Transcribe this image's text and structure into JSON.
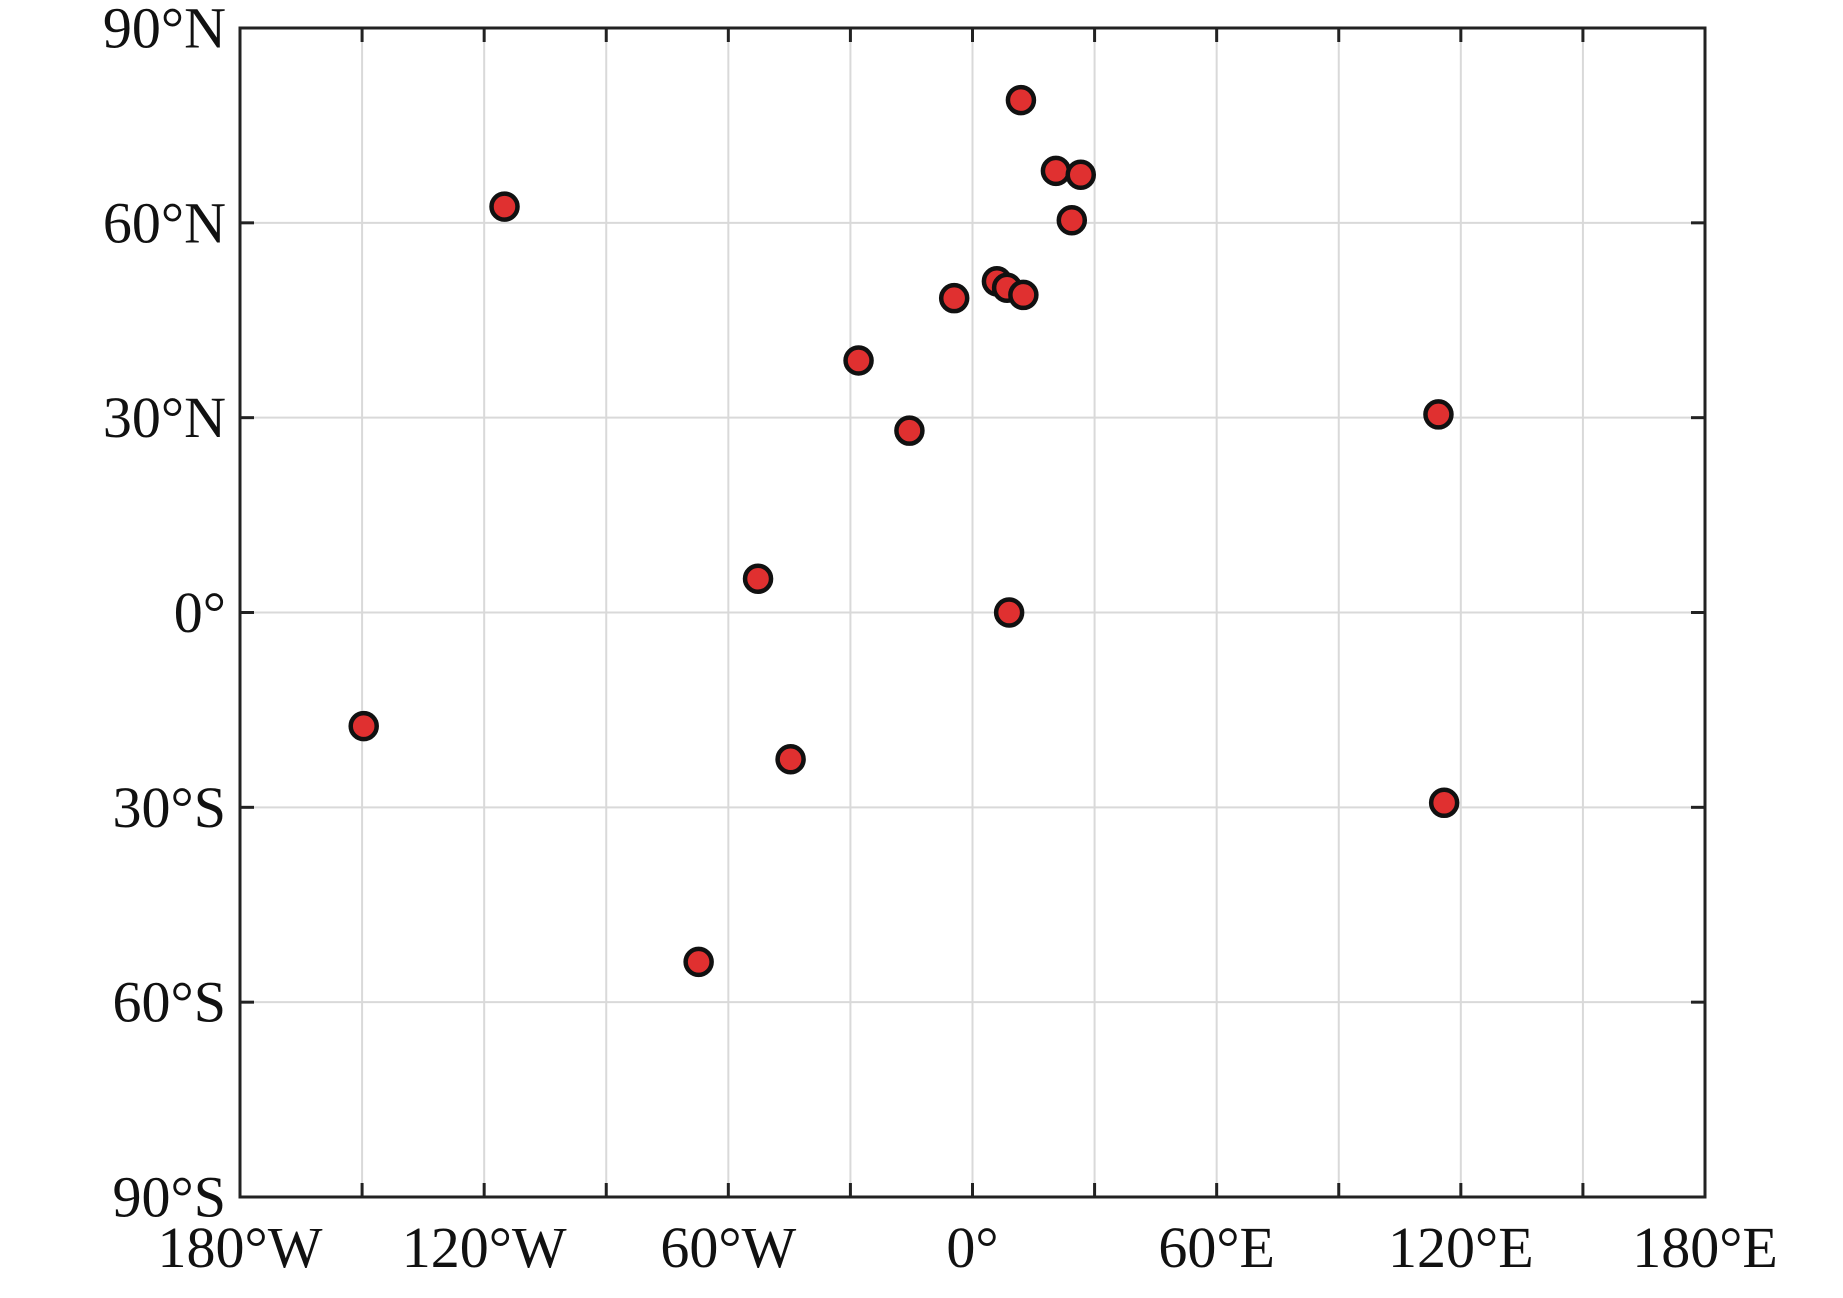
{
  "chart_data": {
    "type": "scatter",
    "title": "",
    "xlabel": "",
    "ylabel": "",
    "xlim": [
      -180,
      180
    ],
    "ylim": [
      -90,
      90
    ],
    "grid": true,
    "marker_color": "#e03030",
    "marker_edge_color": "#111111",
    "grid_color": "#d9d9d9",
    "x_ticks": [
      {
        "value": -180,
        "label": "180°W"
      },
      {
        "value": -120,
        "label": "120°W"
      },
      {
        "value": -60,
        "label": "60°W"
      },
      {
        "value": 0,
        "label": "0°"
      },
      {
        "value": 60,
        "label": "60°E"
      },
      {
        "value": 120,
        "label": "120°E"
      },
      {
        "value": 180,
        "label": "180°E"
      }
    ],
    "y_ticks": [
      {
        "value": 90,
        "label": "90°N"
      },
      {
        "value": 60,
        "label": "60°N"
      },
      {
        "value": 30,
        "label": "30°N"
      },
      {
        "value": 0,
        "label": "0°"
      },
      {
        "value": -30,
        "label": "30°S"
      },
      {
        "value": -60,
        "label": "60°S"
      },
      {
        "value": -90,
        "label": "90°S"
      }
    ],
    "minor_x_gridlines": [
      -150,
      -90,
      -30,
      30,
      90,
      150
    ],
    "points": [
      {
        "x": 11.9,
        "y": 78.9
      },
      {
        "x": 20.5,
        "y": 68.0
      },
      {
        "x": 26.6,
        "y": 67.4
      },
      {
        "x": 24.4,
        "y": 60.4
      },
      {
        "x": -115.0,
        "y": 62.5
      },
      {
        "x": 6.0,
        "y": 51.0
      },
      {
        "x": 8.5,
        "y": 50.0
      },
      {
        "x": 12.5,
        "y": 48.9
      },
      {
        "x": -4.5,
        "y": 48.4
      },
      {
        "x": -28.0,
        "y": 38.8
      },
      {
        "x": -15.5,
        "y": 28.0
      },
      {
        "x": 114.5,
        "y": 30.5
      },
      {
        "x": -52.7,
        "y": 5.2
      },
      {
        "x": 9.0,
        "y": 0.0
      },
      {
        "x": -149.6,
        "y": -17.5
      },
      {
        "x": -44.7,
        "y": -22.6
      },
      {
        "x": 115.9,
        "y": -29.3
      },
      {
        "x": -67.3,
        "y": -53.8
      }
    ]
  }
}
